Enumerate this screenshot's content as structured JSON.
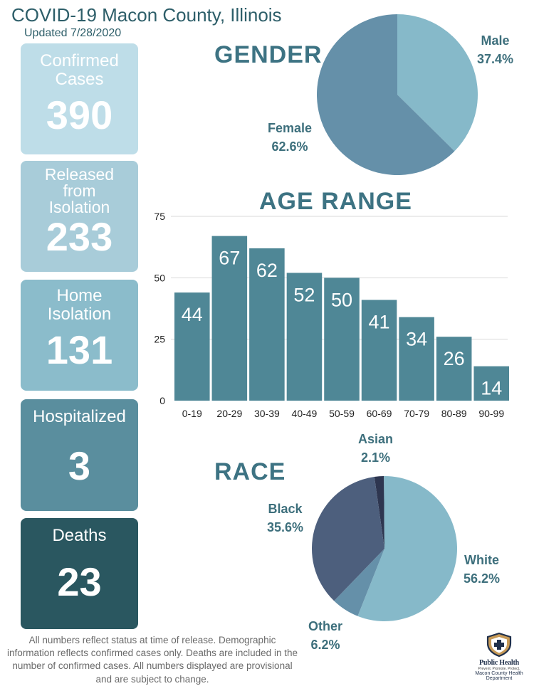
{
  "header": {
    "title": "COVID-19 Macon County, Illinois",
    "updated": "Updated 7/28/2020"
  },
  "cards": [
    {
      "label": "Confirmed Cases",
      "value": "390",
      "color": "#bedde8"
    },
    {
      "label": "Released from Isolation",
      "value": "233",
      "color": "#a8ccd9"
    },
    {
      "label": "Home Isolation",
      "value": "131",
      "color": "#8bbccb"
    },
    {
      "label": "Hospitalized",
      "value": "3",
      "color": "#5a8e9e"
    },
    {
      "label": "Deaths",
      "value": "23",
      "color": "#2a5760"
    }
  ],
  "chart_data": [
    {
      "type": "pie",
      "title": "GENDER",
      "slices": [
        {
          "label": "Male",
          "display": "37.4%",
          "value": 37.4,
          "color": "#86b9c9"
        },
        {
          "label": "Female",
          "display": "62.6%",
          "value": 62.6,
          "color": "#6590a9"
        }
      ]
    },
    {
      "type": "bar",
      "title": "AGE RANGE",
      "categories": [
        "0-19",
        "20-29",
        "30-39",
        "40-49",
        "50-59",
        "60-69",
        "70-79",
        "80-89",
        "90-99"
      ],
      "values": [
        44,
        67,
        62,
        52,
        50,
        41,
        34,
        26,
        14
      ],
      "yticks": [
        0,
        25,
        50,
        75
      ],
      "ylim": [
        0,
        75
      ],
      "grid": true,
      "bar_color": "#4f8796"
    },
    {
      "type": "pie",
      "title": "RACE",
      "slices": [
        {
          "label": "Asian",
          "display": "2.1%",
          "value": 2.1,
          "color": "#2e3650"
        },
        {
          "label": "White",
          "display": "56.2%",
          "value": 56.2,
          "color": "#86b9c9"
        },
        {
          "label": "Other",
          "display": "6.2%",
          "value": 6.2,
          "color": "#6590a9"
        },
        {
          "label": "Black",
          "display": "35.6%",
          "value": 35.6,
          "color": "#4d5f7d"
        }
      ]
    }
  ],
  "footnote": "All numbers reflect status at time of release. Demographic information reflects confirmed cases only. Deaths are included in the number of confirmed cases. All numbers displayed are provisional and are subject to change.",
  "logo": {
    "main": "Public Health",
    "tagline": "Prevent. Promote. Protect.",
    "department": "Macon County Health Department",
    "icon": "shield-cross-icon"
  }
}
